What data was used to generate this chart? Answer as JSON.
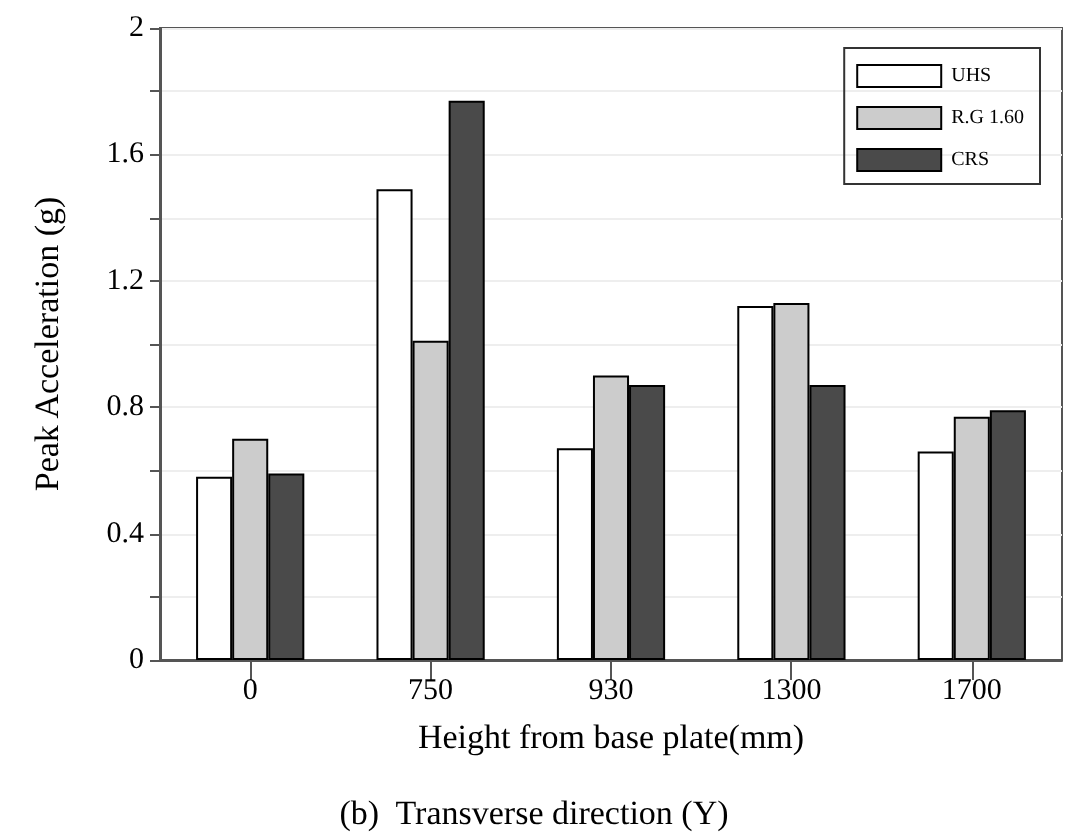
{
  "chart_data": {
    "type": "bar",
    "title": "(b)  Transverse direction (Y)",
    "xlabel": "Height from base plate(mm)",
    "ylabel": "Peak Acceleration (g)",
    "categories": [
      "0",
      "750",
      "930",
      "1300",
      "1700"
    ],
    "series": [
      {
        "name": "UHS",
        "color": "#ffffff",
        "values": [
          0.58,
          1.49,
          0.67,
          1.12,
          0.66
        ]
      },
      {
        "name": "R.G 1.60",
        "color": "#cccccc",
        "values": [
          0.7,
          1.01,
          0.9,
          1.13,
          0.77
        ]
      },
      {
        "name": "CRS",
        "color": "#4a4a4a",
        "values": [
          0.59,
          1.77,
          0.87,
          0.87,
          0.79
        ]
      }
    ],
    "ylim": [
      0,
      2
    ],
    "yticks": [
      0,
      {
        "value": 0.2,
        "label": null
      },
      0.4,
      {
        "value": 0.6,
        "label": null
      },
      0.8,
      {
        "value": 1.0,
        "label": null
      },
      1.2,
      {
        "value": 1.4,
        "label": null
      },
      1.6,
      {
        "value": 1.8,
        "label": null
      },
      2
    ],
    "grid": "y",
    "legend": "top right"
  }
}
